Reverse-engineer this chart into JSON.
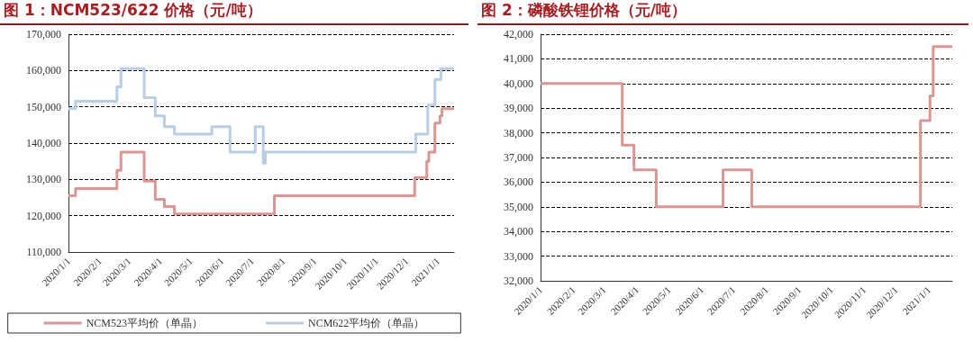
{
  "chart_data": [
    {
      "type": "step",
      "title": "图 1：NCM523/622 价格（元/吨）",
      "legend": "bottom",
      "grid": "y",
      "marker": "none",
      "line_style": "solid",
      "xlim": [
        "2020-01-01",
        "2021-01-17"
      ],
      "xticks": [
        {
          "value": "2020-01-01",
          "label": "2020/1/1"
        },
        {
          "value": "2020-02-01",
          "label": "2020/2/1"
        },
        {
          "value": "2020-03-01",
          "label": "2020/3/1"
        },
        {
          "value": "2020-04-01",
          "label": "2020/4/1"
        },
        {
          "value": "2020-05-01",
          "label": "2020/5/1"
        },
        {
          "value": "2020-06-01",
          "label": "2020/6/1"
        },
        {
          "value": "2020-07-01",
          "label": "2020/7/1"
        },
        {
          "value": "2020-08-01",
          "label": "2020/8/1"
        },
        {
          "value": "2020-09-01",
          "label": "2020/9/1"
        },
        {
          "value": "2020-10-01",
          "label": "2020/10/1"
        },
        {
          "value": "2020-11-01",
          "label": "2020/11/1"
        },
        {
          "value": "2020-12-01",
          "label": "2020/12/1"
        },
        {
          "value": "2021-01-01",
          "label": "2021/1/1"
        }
      ],
      "ylim": [
        110000,
        170000
      ],
      "yticks": [
        {
          "value": 110000,
          "label": "110,000"
        },
        {
          "value": 120000,
          "label": "120,000"
        },
        {
          "value": 130000,
          "label": "130,000"
        },
        {
          "value": 140000,
          "label": "140,000"
        },
        {
          "value": 150000,
          "label": "150,000"
        },
        {
          "value": 160000,
          "label": "160,000"
        },
        {
          "value": 170000,
          "label": "170,000"
        }
      ],
      "series": [
        {
          "name": "NCM523平均价（单晶）",
          "color": "#d99694",
          "x": [
            "2020-01-01",
            "2020-01-08",
            "2020-02-18",
            "2020-02-22",
            "2020-03-16",
            "2020-03-27",
            "2020-04-05",
            "2020-04-15",
            "2020-07-23",
            "2020-12-09",
            "2020-12-21",
            "2020-12-23",
            "2020-12-29",
            "2021-01-03",
            "2021-01-05",
            "2021-01-17"
          ],
          "values": [
            125500,
            127500,
            132500,
            137500,
            129500,
            124500,
            122500,
            120500,
            125500,
            130500,
            135000,
            137500,
            145500,
            147500,
            149500,
            149500
          ]
        },
        {
          "name": "NCM622平均价（单晶）",
          "color": "#b9cde5",
          "x": [
            "2020-01-01",
            "2020-01-08",
            "2020-02-18",
            "2020-02-22",
            "2020-03-16",
            "2020-03-27",
            "2020-04-05",
            "2020-04-15",
            "2020-05-22",
            "2020-06-09",
            "2020-07-04",
            "2020-07-12",
            "2020-07-14",
            "2020-12-10",
            "2020-12-22",
            "2020-12-29",
            "2021-01-04",
            "2021-01-17"
          ],
          "values": [
            149500,
            151500,
            155500,
            160500,
            152500,
            147500,
            144500,
            142500,
            144500,
            137500,
            144500,
            134500,
            137500,
            142500,
            150500,
            157500,
            160500,
            160500
          ]
        }
      ]
    },
    {
      "type": "step",
      "title": "图 2：磷酸铁锂价格（元/吨）",
      "grid": "y",
      "marker": "none",
      "line_style": "solid",
      "xlim": [
        "2020-01-01",
        "2021-01-23"
      ],
      "xticks": [
        {
          "value": "2020-01-01",
          "label": "2020/1/1"
        },
        {
          "value": "2020-02-01",
          "label": "2020/2/1"
        },
        {
          "value": "2020-03-01",
          "label": "2020/3/1"
        },
        {
          "value": "2020-04-01",
          "label": "2020/4/1"
        },
        {
          "value": "2020-05-01",
          "label": "2020/5/1"
        },
        {
          "value": "2020-06-01",
          "label": "2020/6/1"
        },
        {
          "value": "2020-07-01",
          "label": "2020/7/1"
        },
        {
          "value": "2020-08-01",
          "label": "2020/8/1"
        },
        {
          "value": "2020-09-01",
          "label": "2020/9/1"
        },
        {
          "value": "2020-10-01",
          "label": "2020/10/1"
        },
        {
          "value": "2020-11-01",
          "label": "2020/11/1"
        },
        {
          "value": "2020-12-01",
          "label": "2020/12/1"
        },
        {
          "value": "2021-01-01",
          "label": "2021/1/1"
        }
      ],
      "ylim": [
        32000,
        42000
      ],
      "yticks": [
        {
          "value": 32000,
          "label": "32,000"
        },
        {
          "value": 33000,
          "label": "33,000"
        },
        {
          "value": 34000,
          "label": "34,000"
        },
        {
          "value": 35000,
          "label": "35,000"
        },
        {
          "value": 36000,
          "label": "36,000"
        },
        {
          "value": 37000,
          "label": "37,000"
        },
        {
          "value": 38000,
          "label": "38,000"
        },
        {
          "value": 39000,
          "label": "39,000"
        },
        {
          "value": 40000,
          "label": "40,000"
        },
        {
          "value": 41000,
          "label": "41,000"
        },
        {
          "value": 42000,
          "label": "42,000"
        }
      ],
      "series": [
        {
          "color": "#d99694",
          "x": [
            "2020-01-01",
            "2020-03-18",
            "2020-03-29",
            "2020-04-19",
            "2020-06-21",
            "2020-07-18",
            "2020-12-24",
            "2021-01-02",
            "2021-01-05",
            "2021-01-23"
          ],
          "values": [
            40000,
            37500,
            36500,
            35000,
            36500,
            35000,
            38500,
            39500,
            41500,
            41500
          ]
        }
      ]
    }
  ]
}
